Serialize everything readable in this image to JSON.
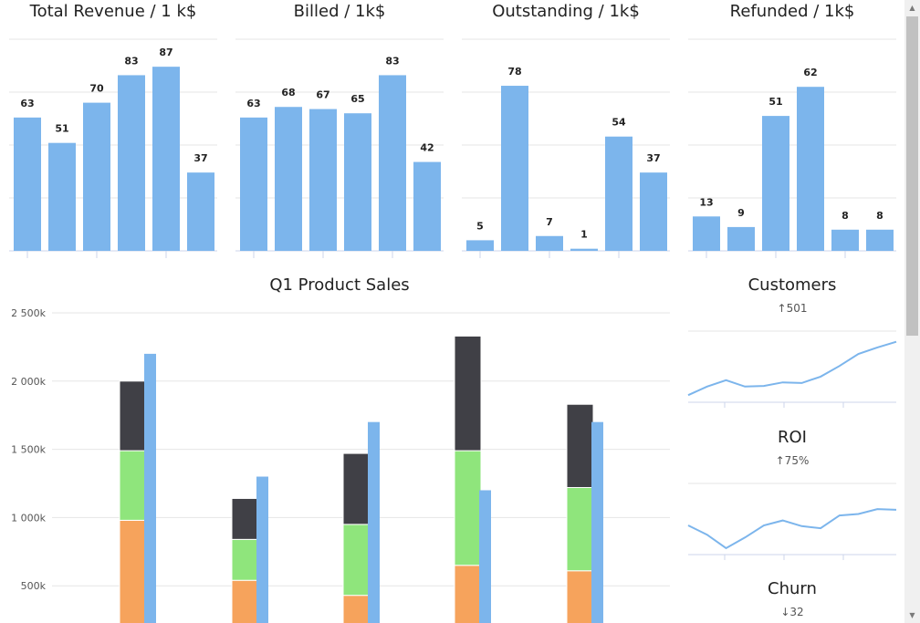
{
  "mini_charts": [
    {
      "title": "Total Revenue / 1 k$",
      "values": [
        63,
        51,
        70,
        83,
        87,
        37
      ],
      "ylim": [
        0,
        100
      ]
    },
    {
      "title": "Billed / 1k$",
      "values": [
        63,
        68,
        67,
        65,
        83,
        42
      ],
      "ylim": [
        0,
        100
      ]
    },
    {
      "title": "Outstanding / 1k$",
      "values": [
        5,
        78,
        7,
        1,
        54,
        37
      ],
      "ylim": [
        0,
        100
      ]
    },
    {
      "title": "Refunded / 1k$",
      "values": [
        13,
        9,
        51,
        62,
        8,
        8
      ],
      "ylim": [
        0,
        80
      ]
    }
  ],
  "chart_data": {
    "type": "bar",
    "title": "Q1 Product Sales",
    "y_ticks": [
      "500k",
      "1 000k",
      "1 500k",
      "2 000k",
      "2 500k"
    ],
    "y_tick_values": [
      500,
      1000,
      1500,
      2000,
      2500
    ],
    "ylim": [
      0,
      2700
    ],
    "groups": [
      {
        "stack": [
          980,
          510,
          510
        ],
        "target": 2200
      },
      {
        "stack": [
          540,
          300,
          300
        ],
        "target": 1300
      },
      {
        "stack": [
          430,
          520,
          520
        ],
        "target": 1700
      },
      {
        "stack": [
          650,
          840,
          840
        ],
        "target": 1200
      },
      {
        "stack": [
          610,
          610,
          610
        ],
        "target": 1700
      }
    ],
    "colors": {
      "stack": [
        "#f6a35c",
        "#8fe57c",
        "#404046"
      ],
      "target": "#7cb5ec"
    }
  },
  "side_charts": [
    {
      "title": "Customers",
      "subtitle": "↑501",
      "values": [
        10,
        22,
        31,
        22,
        23,
        28,
        27,
        36,
        51,
        68,
        77,
        85
      ]
    },
    {
      "title": "ROI",
      "subtitle": "↑75%",
      "values": [
        41,
        28,
        9,
        24,
        41,
        48,
        40,
        37,
        55,
        57,
        64,
        63
      ]
    },
    {
      "title": "Churn",
      "subtitle": "↓32",
      "values": []
    }
  ],
  "colors": {
    "bar": "#7cb5ec",
    "grid": "#e6e6e6",
    "axis": "#ccd6eb"
  }
}
